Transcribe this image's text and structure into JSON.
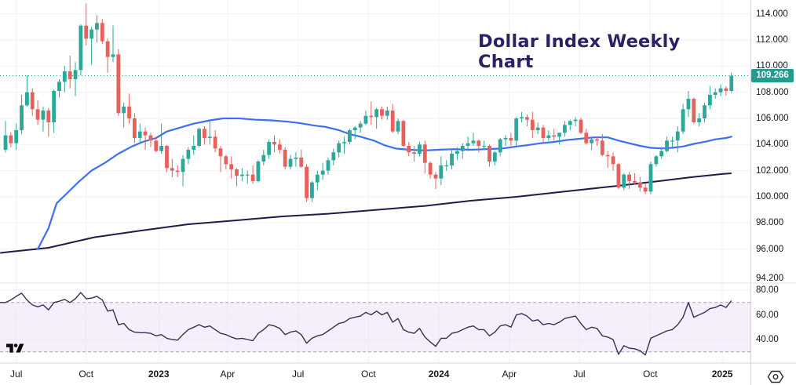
{
  "title": "Dollar Index Weekly Chart",
  "last_price_badge": {
    "label": "109.266",
    "value": 109.266
  },
  "price_axis": {
    "labels": [
      "114.000",
      "112.000",
      "110.000",
      "108.000",
      "106.000",
      "104.000",
      "102.000",
      "100.000",
      "98.000",
      "96.000",
      "94.200"
    ],
    "values": [
      114,
      112,
      110,
      108,
      106,
      104,
      102,
      100,
      98,
      96,
      94.2
    ]
  },
  "rsi_axis": {
    "labels": [
      "80.00",
      "60.00",
      "40.00"
    ],
    "values": [
      80,
      60,
      40
    ]
  },
  "time_axis": {
    "ticks": [
      {
        "label": "Jul",
        "week": 2,
        "year": false
      },
      {
        "label": "Oct",
        "week": 15,
        "year": false
      },
      {
        "label": "2023",
        "week": 28.5,
        "year": true
      },
      {
        "label": "Apr",
        "week": 41.3,
        "year": false
      },
      {
        "label": "Jul",
        "week": 54.4,
        "year": false
      },
      {
        "label": "Oct",
        "week": 67.5,
        "year": false
      },
      {
        "label": "2024",
        "week": 80.6,
        "year": true
      },
      {
        "label": "Apr",
        "week": 93.7,
        "year": false
      },
      {
        "label": "Jul",
        "week": 106.7,
        "year": false
      },
      {
        "label": "Oct",
        "week": 119.9,
        "year": false
      },
      {
        "label": "2025",
        "week": 133.3,
        "year": true
      }
    ]
  },
  "icons": {
    "watermark": "tradingview-logo",
    "bottom_right": "settings-octagon-icon"
  },
  "colors": {
    "up": "#2ba899",
    "down": "#e8605c",
    "ma_fast": "#3d6ff2",
    "ma_slow": "#221a4a",
    "rsi_line": "#3f2c56",
    "rsi_band_fill": "#efe2f8",
    "rsi_band_border": "#aaa2b8",
    "last_price_line": "#239b8e",
    "badge_bg": "#239b8e",
    "grid": "#f0f2f7",
    "separator": "#e4e6ee",
    "axis_border": "#d1d4dc",
    "text": "#131722",
    "title_color": "#2d2063",
    "background": "#ffffff",
    "watermark_color": "#0a0a0a",
    "icon_color": "#2a2e39"
  },
  "chart_data": {
    "type": "candlestick",
    "title": "Dollar Index Weekly Chart",
    "timeframe": "weekly",
    "x_span_weeks": 136,
    "x_range_label": [
      "Jul 2022",
      "2025"
    ],
    "price_ylim": [
      94.2,
      115.3
    ],
    "price_gridlines": [
      114,
      112,
      110,
      108,
      106,
      104,
      102,
      100,
      98,
      96
    ],
    "last_price": 109.266,
    "candles_ohlc": [
      [
        103.6,
        105.8,
        103.4,
        104.7
      ],
      [
        104.7,
        104.95,
        103.8,
        104.1
      ],
      [
        104.1,
        105.6,
        103.6,
        105.1
      ],
      [
        105.1,
        107.8,
        104.8,
        107.0
      ],
      [
        107.0,
        109.3,
        106.9,
        108.0
      ],
      [
        108.0,
        108.3,
        106.2,
        106.7
      ],
      [
        106.7,
        107.4,
        105.5,
        105.9
      ],
      [
        105.9,
        106.9,
        105.0,
        106.6
      ],
      [
        106.6,
        106.8,
        104.6,
        105.7
      ],
      [
        105.7,
        108.2,
        104.9,
        108.1
      ],
      [
        108.1,
        109.0,
        107.6,
        108.8
      ],
      [
        108.8,
        110.0,
        108.0,
        109.6
      ],
      [
        109.6,
        110.8,
        108.3,
        109.0
      ],
      [
        109.0,
        110.3,
        107.7,
        109.7
      ],
      [
        109.7,
        113.2,
        109.3,
        113.1
      ],
      [
        113.1,
        114.8,
        111.6,
        112.1
      ],
      [
        112.1,
        113.0,
        110.1,
        112.8
      ],
      [
        112.8,
        113.9,
        111.8,
        113.3
      ],
      [
        113.3,
        113.6,
        111.7,
        111.9
      ],
      [
        111.9,
        112.1,
        109.5,
        110.7
      ],
      [
        110.7,
        113.1,
        110.3,
        110.9
      ],
      [
        110.9,
        111.3,
        106.2,
        106.4
      ],
      [
        106.4,
        107.2,
        105.3,
        106.9
      ],
      [
        106.9,
        107.9,
        105.6,
        106.0
      ],
      [
        106.0,
        106.4,
        104.1,
        104.5
      ],
      [
        104.5,
        105.6,
        104.1,
        105.0
      ],
      [
        105.0,
        105.3,
        103.6,
        104.7
      ],
      [
        104.7,
        104.9,
        103.8,
        104.3
      ],
      [
        104.3,
        104.6,
        103.4,
        103.5
      ],
      [
        103.5,
        105.6,
        103.3,
        103.9
      ],
      [
        103.9,
        103.95,
        101.9,
        102.2
      ],
      [
        102.2,
        102.9,
        101.5,
        102.0
      ],
      [
        102.0,
        102.4,
        101.5,
        101.9
      ],
      [
        101.9,
        103.2,
        100.8,
        102.9
      ],
      [
        102.9,
        103.8,
        102.5,
        103.6
      ],
      [
        103.6,
        104.7,
        103.2,
        103.9
      ],
      [
        103.9,
        105.3,
        103.8,
        105.2
      ],
      [
        105.2,
        105.4,
        104.0,
        104.5
      ],
      [
        104.5,
        105.9,
        104.0,
        104.6
      ],
      [
        104.6,
        105.1,
        103.4,
        103.7
      ],
      [
        103.7,
        103.9,
        101.9,
        103.1
      ],
      [
        103.1,
        103.2,
        102.1,
        102.5
      ],
      [
        102.5,
        103.1,
        101.4,
        102.1
      ],
      [
        102.1,
        102.2,
        100.8,
        101.6
      ],
      [
        101.6,
        102.2,
        101.2,
        101.7
      ],
      [
        101.7,
        102.0,
        101.0,
        101.7
      ],
      [
        101.7,
        102.4,
        101.0,
        101.2
      ],
      [
        101.2,
        102.8,
        101.1,
        102.7
      ],
      [
        102.7,
        103.6,
        102.4,
        103.2
      ],
      [
        103.2,
        104.4,
        102.9,
        104.2
      ],
      [
        104.2,
        104.7,
        103.4,
        104.0
      ],
      [
        104.0,
        104.4,
        103.3,
        103.6
      ],
      [
        103.6,
        103.8,
        102.1,
        102.3
      ],
      [
        102.3,
        103.2,
        102.1,
        102.9
      ],
      [
        102.9,
        103.4,
        102.3,
        103.0
      ],
      [
        103.0,
        103.6,
        102.2,
        102.3
      ],
      [
        102.3,
        102.5,
        99.6,
        99.9
      ],
      [
        99.9,
        101.2,
        99.6,
        101.1
      ],
      [
        101.1,
        102.0,
        100.5,
        101.7
      ],
      [
        101.7,
        102.6,
        101.3,
        102.0
      ],
      [
        102.0,
        103.0,
        101.7,
        102.8
      ],
      [
        102.8,
        103.7,
        102.4,
        103.4
      ],
      [
        103.4,
        104.3,
        103.0,
        104.1
      ],
      [
        104.1,
        104.6,
        103.3,
        104.2
      ],
      [
        104.2,
        105.2,
        104.0,
        105.1
      ],
      [
        105.1,
        105.4,
        104.4,
        105.3
      ],
      [
        105.3,
        105.8,
        104.9,
        105.6
      ],
      [
        105.6,
        106.6,
        105.5,
        106.2
      ],
      [
        106.2,
        107.3,
        105.5,
        106.1
      ],
      [
        106.1,
        106.8,
        105.2,
        106.7
      ],
      [
        106.7,
        106.9,
        105.9,
        106.2
      ],
      [
        106.2,
        106.9,
        105.9,
        106.6
      ],
      [
        106.6,
        107.1,
        104.9,
        105.0
      ],
      [
        105.0,
        106.0,
        104.8,
        105.8
      ],
      [
        105.8,
        105.9,
        103.8,
        103.9
      ],
      [
        103.9,
        104.2,
        103.1,
        103.4
      ],
      [
        103.4,
        103.9,
        102.7,
        103.3
      ],
      [
        103.3,
        104.2,
        103.1,
        104.0
      ],
      [
        104.0,
        104.3,
        101.8,
        102.6
      ],
      [
        102.6,
        102.7,
        101.4,
        101.7
      ],
      [
        101.7,
        101.9,
        100.6,
        101.4
      ],
      [
        101.4,
        103.1,
        100.9,
        102.4
      ],
      [
        102.4,
        102.8,
        102.0,
        102.4
      ],
      [
        102.4,
        103.7,
        102.1,
        103.3
      ],
      [
        103.3,
        103.8,
        102.8,
        103.5
      ],
      [
        103.5,
        104.1,
        102.9,
        103.9
      ],
      [
        103.9,
        104.6,
        103.5,
        104.1
      ],
      [
        104.1,
        104.9,
        103.9,
        104.3
      ],
      [
        104.3,
        104.4,
        103.4,
        103.9
      ],
      [
        103.9,
        104.3,
        103.6,
        103.9
      ],
      [
        103.9,
        104.0,
        102.3,
        102.7
      ],
      [
        102.7,
        103.5,
        102.4,
        103.4
      ],
      [
        103.4,
        104.5,
        103.1,
        104.4
      ],
      [
        104.4,
        104.7,
        103.9,
        104.5
      ],
      [
        104.5,
        104.9,
        103.9,
        104.3
      ],
      [
        104.3,
        106.1,
        103.9,
        106.0
      ],
      [
        106.0,
        106.5,
        105.7,
        106.1
      ],
      [
        106.1,
        106.3,
        105.4,
        105.9
      ],
      [
        105.9,
        106.5,
        104.5,
        105.1
      ],
      [
        105.1,
        105.7,
        104.8,
        105.3
      ],
      [
        105.3,
        105.5,
        104.1,
        104.5
      ],
      [
        104.5,
        105.1,
        104.3,
        104.7
      ],
      [
        104.7,
        105.2,
        104.3,
        104.6
      ],
      [
        104.6,
        104.9,
        104.0,
        104.9
      ],
      [
        104.9,
        105.8,
        104.6,
        105.5
      ],
      [
        105.5,
        105.9,
        105.1,
        105.8
      ],
      [
        105.8,
        106.1,
        105.4,
        105.9
      ],
      [
        105.9,
        106.05,
        104.8,
        104.9
      ],
      [
        104.9,
        105.2,
        104.0,
        104.1
      ],
      [
        104.1,
        104.5,
        103.6,
        104.4
      ],
      [
        104.4,
        104.6,
        103.9,
        104.3
      ],
      [
        104.3,
        104.8,
        103.1,
        103.2
      ],
      [
        103.2,
        103.5,
        102.2,
        103.1
      ],
      [
        103.1,
        103.4,
        102.0,
        102.5
      ],
      [
        102.5,
        102.6,
        100.6,
        100.7
      ],
      [
        100.7,
        101.8,
        100.5,
        101.7
      ],
      [
        101.7,
        101.9,
        100.6,
        101.2
      ],
      [
        101.2,
        101.8,
        100.9,
        101.1
      ],
      [
        101.1,
        101.5,
        100.4,
        100.7
      ],
      [
        100.7,
        101.0,
        100.2,
        100.4
      ],
      [
        100.4,
        102.7,
        100.2,
        102.5
      ],
      [
        102.5,
        103.2,
        102.3,
        103.1
      ],
      [
        103.1,
        103.8,
        102.9,
        103.5
      ],
      [
        103.5,
        104.6,
        103.4,
        104.3
      ],
      [
        104.3,
        104.6,
        103.8,
        104.3
      ],
      [
        104.3,
        105.4,
        103.4,
        105.0
      ],
      [
        105.0,
        107.1,
        104.8,
        106.7
      ],
      [
        106.7,
        108.1,
        106.1,
        107.5
      ],
      [
        107.5,
        107.6,
        105.6,
        105.7
      ],
      [
        105.7,
        106.4,
        105.4,
        106.0
      ],
      [
        106.0,
        107.2,
        105.7,
        107.0
      ],
      [
        107.0,
        108.5,
        106.7,
        107.8
      ],
      [
        107.8,
        108.3,
        107.5,
        108.0
      ],
      [
        108.0,
        108.6,
        107.7,
        108.3
      ],
      [
        108.3,
        108.45,
        107.75,
        108.1
      ],
      [
        108.1,
        109.5,
        107.95,
        109.266
      ]
    ],
    "ma_fast_points": [
      [
        6,
        96.0
      ],
      [
        8,
        97.6
      ],
      [
        9.5,
        99.5
      ],
      [
        11.5,
        100.3
      ],
      [
        13.5,
        101.1
      ],
      [
        16,
        102.0
      ],
      [
        18.5,
        102.6
      ],
      [
        21,
        103.3
      ],
      [
        23.5,
        103.85
      ],
      [
        25.5,
        104.2
      ],
      [
        28,
        104.5
      ],
      [
        30,
        105.0
      ],
      [
        32.5,
        105.3
      ],
      [
        35,
        105.6
      ],
      [
        38,
        105.85
      ],
      [
        40.5,
        106.0
      ],
      [
        43.5,
        106.0
      ],
      [
        46.5,
        105.9
      ],
      [
        49.5,
        105.85
      ],
      [
        52.5,
        105.75
      ],
      [
        54.5,
        105.65
      ],
      [
        57.5,
        105.45
      ],
      [
        59.5,
        105.35
      ],
      [
        62,
        105.1
      ],
      [
        64,
        104.8
      ],
      [
        66,
        104.6
      ],
      [
        68.5,
        104.3
      ],
      [
        70.5,
        103.95
      ],
      [
        72.5,
        103.7
      ],
      [
        75,
        103.6
      ],
      [
        78,
        103.55
      ],
      [
        80.5,
        103.6
      ],
      [
        83.5,
        103.65
      ],
      [
        86.5,
        103.6
      ],
      [
        89.5,
        103.65
      ],
      [
        92.5,
        103.7
      ],
      [
        95,
        103.85
      ],
      [
        97,
        103.95
      ],
      [
        99.5,
        104.1
      ],
      [
        102,
        104.2
      ],
      [
        104.5,
        104.35
      ],
      [
        107,
        104.45
      ],
      [
        109.5,
        104.55
      ],
      [
        112,
        104.55
      ],
      [
        114,
        104.3
      ],
      [
        116,
        104.1
      ],
      [
        118,
        103.9
      ],
      [
        120,
        103.75
      ],
      [
        122,
        103.7
      ],
      [
        124,
        103.75
      ],
      [
        126,
        103.85
      ],
      [
        128,
        104.05
      ],
      [
        130.5,
        104.25
      ],
      [
        132,
        104.4
      ],
      [
        134,
        104.5
      ],
      [
        135,
        104.6
      ]
    ],
    "ma_slow_points": [
      [
        -1,
        95.7
      ],
      [
        0,
        95.75
      ],
      [
        8,
        96.1
      ],
      [
        16.5,
        96.9
      ],
      [
        25,
        97.4
      ],
      [
        34,
        97.9
      ],
      [
        43,
        98.2
      ],
      [
        51.5,
        98.5
      ],
      [
        60,
        98.7
      ],
      [
        69,
        99.0
      ],
      [
        78,
        99.3
      ],
      [
        86.5,
        99.7
      ],
      [
        95,
        100.0
      ],
      [
        104,
        100.4
      ],
      [
        113,
        100.8
      ],
      [
        121.5,
        101.2
      ],
      [
        127.5,
        101.5
      ],
      [
        133.5,
        101.75
      ],
      [
        135,
        101.8
      ]
    ],
    "rsi_panel": {
      "ylim": [
        21,
        84
      ],
      "upper_band": 70,
      "lower_band": 30,
      "values": [
        70,
        72,
        75,
        77.5,
        72,
        68,
        66.5,
        68,
        64,
        70,
        71,
        72.5,
        70,
        73,
        78,
        73,
        73.5,
        75,
        72,
        63,
        64,
        52,
        53,
        48,
        46,
        45.5,
        45.5,
        45,
        43,
        44,
        41,
        40,
        39.5,
        44,
        48,
        50,
        52,
        50,
        51,
        48,
        45,
        44,
        42,
        40.5,
        41,
        40,
        39,
        45,
        48,
        52,
        51,
        49,
        44,
        46,
        47,
        44,
        37,
        41,
        43,
        44,
        47,
        50,
        53,
        54,
        57,
        58,
        59,
        62,
        60,
        63,
        60,
        62,
        54,
        57,
        48,
        46,
        45,
        49,
        42,
        38,
        34.5,
        41,
        41,
        45,
        46,
        48,
        50,
        51,
        48,
        48,
        43,
        46,
        51,
        52,
        50,
        60,
        61,
        59,
        55,
        56,
        52,
        53,
        52,
        54,
        57,
        58,
        59,
        53,
        48,
        50,
        49,
        43,
        42,
        40,
        28,
        35,
        33,
        32.5,
        31,
        27.5,
        41,
        43,
        45,
        47,
        48,
        52,
        58,
        70,
        58,
        60,
        62,
        65,
        66,
        68,
        66,
        71.5
      ]
    }
  }
}
